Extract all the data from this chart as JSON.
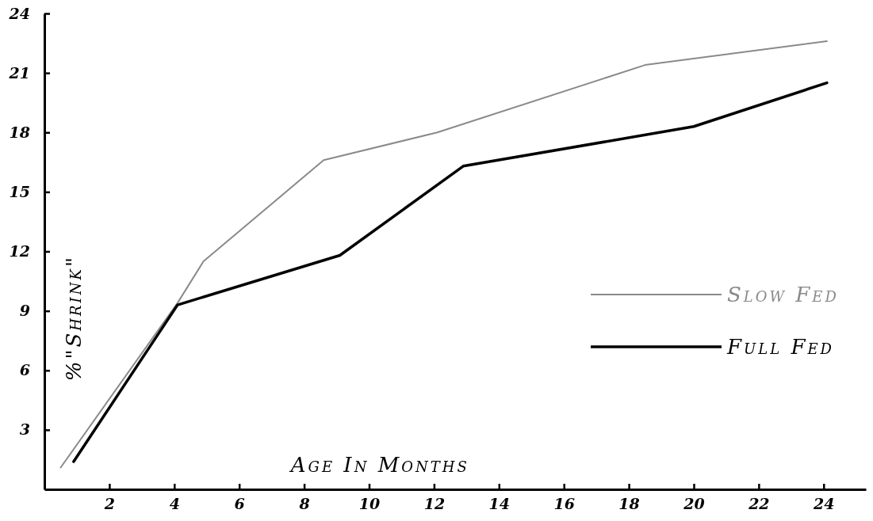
{
  "chart_data": {
    "type": "line",
    "xlabel": "Age In Months",
    "ylabel": "%\"Shrink\"",
    "xlim": [
      0,
      25.3
    ],
    "ylim": [
      0,
      24
    ],
    "xticks": [
      2,
      4,
      6,
      8,
      10,
      12,
      14,
      16,
      18,
      20,
      22,
      24
    ],
    "yticks": [
      3,
      6,
      9,
      12,
      15,
      18,
      21,
      24
    ],
    "grid": false,
    "legend": "right",
    "marker": "none",
    "series": [
      {
        "name": "Slow Fed",
        "color": "#8a8a8a",
        "x": [
          0.5,
          4.1,
          4.9,
          8.6,
          12.1,
          18.5,
          24.1
        ],
        "values": [
          1.1,
          9.4,
          11.5,
          16.6,
          18.0,
          21.4,
          22.6
        ]
      },
      {
        "name": "Full Fed",
        "color": "#000000",
        "x": [
          0.9,
          4.1,
          9.1,
          12.9,
          20.0,
          24.1
        ],
        "values": [
          1.4,
          9.3,
          11.8,
          16.3,
          18.3,
          20.5
        ]
      }
    ]
  }
}
